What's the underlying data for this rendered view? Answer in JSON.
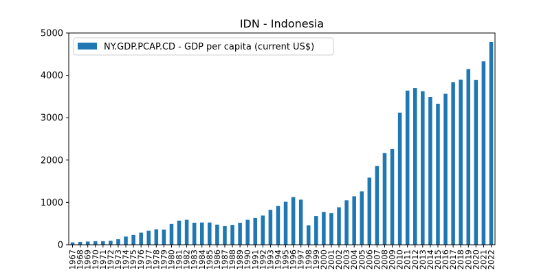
{
  "chart_data": {
    "type": "bar",
    "title": "IDN - Indonesia",
    "xlabel": "",
    "ylabel": "",
    "ylim": [
      0,
      5000
    ],
    "yticks": [
      0,
      1000,
      2000,
      3000,
      4000,
      5000
    ],
    "grid": false,
    "legend_position": "top-left",
    "categories": [
      "1967",
      "1968",
      "1969",
      "1970",
      "1971",
      "1972",
      "1973",
      "1974",
      "1975",
      "1976",
      "1977",
      "1978",
      "1979",
      "1980",
      "1981",
      "1982",
      "1983",
      "1984",
      "1985",
      "1986",
      "1987",
      "1988",
      "1989",
      "1990",
      "1991",
      "1992",
      "1993",
      "1994",
      "1995",
      "1996",
      "1997",
      "1998",
      "1999",
      "2000",
      "2001",
      "2002",
      "2003",
      "2004",
      "2005",
      "2006",
      "2007",
      "2008",
      "2009",
      "2010",
      "2011",
      "2012",
      "2013",
      "2014",
      "2015",
      "2016",
      "2017",
      "2018",
      "2019",
      "2020",
      "2021",
      "2022"
    ],
    "series": [
      {
        "name": "NY.GDP.PCAP.CD - GDP per capita (current US$)",
        "color": "#1f77b4",
        "values": [
          55,
          65,
          75,
          85,
          85,
          95,
          130,
          195,
          230,
          285,
          330,
          365,
          360,
          490,
          570,
          590,
          520,
          525,
          525,
          475,
          440,
          470,
          520,
          590,
          635,
          690,
          825,
          915,
          1015,
          1125,
          1065,
          460,
          680,
          775,
          745,
          885,
          1050,
          1145,
          1260,
          1585,
          1860,
          2165,
          2260,
          3120,
          3640,
          3700,
          3625,
          3490,
          3330,
          3565,
          3840,
          3900,
          4150,
          3895,
          4330,
          4790
        ]
      }
    ]
  }
}
